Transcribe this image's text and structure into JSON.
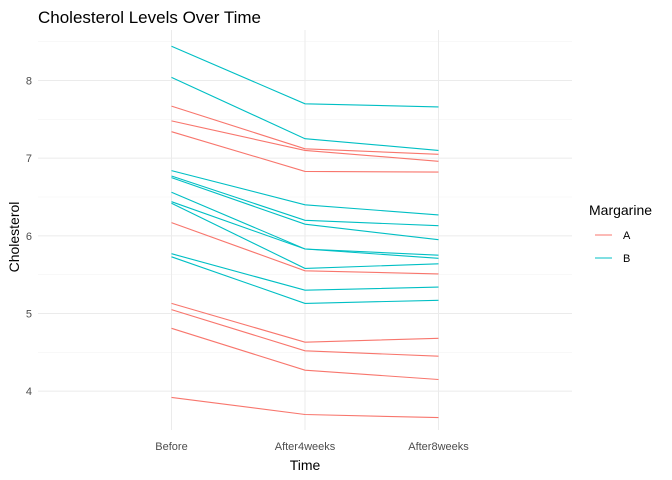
{
  "chart_data": {
    "type": "line",
    "title": "Cholesterol Levels Over Time",
    "xlabel": "Time",
    "ylabel": "Cholesterol",
    "categories": [
      "Before",
      "After4weeks",
      "After8weeks"
    ],
    "ylim": [
      3.5,
      8.65
    ],
    "yticks": [
      4,
      5,
      6,
      7,
      8
    ],
    "grid": true,
    "legend": {
      "title": "Margarine",
      "placement": "right",
      "entries": [
        {
          "label": "A",
          "color": "#F8766D"
        },
        {
          "label": "B",
          "color": "#00BFC4"
        }
      ]
    },
    "series": [
      {
        "group": "A",
        "values": [
          7.67,
          7.12,
          7.05
        ]
      },
      {
        "group": "A",
        "values": [
          7.48,
          7.1,
          6.96
        ]
      },
      {
        "group": "A",
        "values": [
          7.34,
          6.83,
          6.82
        ]
      },
      {
        "group": "A",
        "values": [
          6.17,
          5.55,
          5.51
        ]
      },
      {
        "group": "A",
        "values": [
          5.13,
          4.63,
          4.68
        ]
      },
      {
        "group": "A",
        "values": [
          5.05,
          4.52,
          4.45
        ]
      },
      {
        "group": "A",
        "values": [
          4.81,
          4.27,
          4.15
        ]
      },
      {
        "group": "A",
        "values": [
          3.92,
          3.7,
          3.66
        ]
      },
      {
        "group": "B",
        "values": [
          8.44,
          7.7,
          7.66
        ]
      },
      {
        "group": "B",
        "values": [
          8.04,
          7.25,
          7.1
        ]
      },
      {
        "group": "B",
        "values": [
          6.84,
          6.4,
          6.27
        ]
      },
      {
        "group": "B",
        "values": [
          6.77,
          6.2,
          6.13
        ]
      },
      {
        "group": "B",
        "values": [
          6.75,
          6.15,
          5.95
        ]
      },
      {
        "group": "B",
        "values": [
          6.56,
          5.83,
          5.75
        ]
      },
      {
        "group": "B",
        "values": [
          6.44,
          5.83,
          5.71
        ]
      },
      {
        "group": "B",
        "values": [
          6.42,
          5.58,
          5.64
        ]
      },
      {
        "group": "B",
        "values": [
          5.77,
          5.3,
          5.34
        ]
      },
      {
        "group": "B",
        "values": [
          5.73,
          5.13,
          5.17
        ]
      }
    ]
  }
}
